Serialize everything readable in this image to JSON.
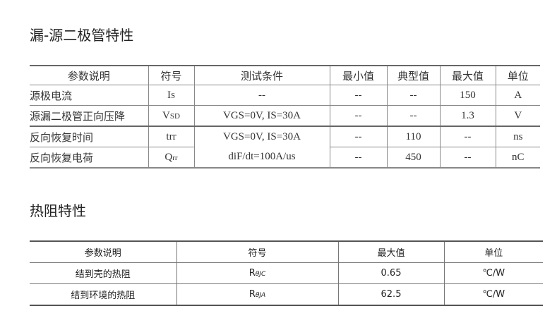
{
  "section1": {
    "title": "漏-源二极管特性",
    "headers": [
      "参数说明",
      "符号",
      "测试条件",
      "最小值",
      "典型值",
      "最大值",
      "单位"
    ],
    "rows": [
      {
        "param": "源极电流",
        "sym": "I",
        "sub": "S",
        "cond": "--",
        "min": "--",
        "typ": "--",
        "max": "150",
        "unit": "A"
      },
      {
        "param": "源漏二极管正向压降",
        "sym": "V",
        "sub": "SD",
        "cond": "VGS=0V, IS=30A",
        "min": "--",
        "typ": "--",
        "max": "1.3",
        "unit": "V"
      },
      {
        "param": "反向恢复时间",
        "sym": "trr",
        "sub": "",
        "cond": "VGS=0V, IS=30A",
        "min": "--",
        "typ": "110",
        "max": "--",
        "unit": "ns"
      },
      {
        "param": "反向恢复电荷",
        "sym": "Q",
        "sub": "rr",
        "cond": "diF/dt=100A/us",
        "min": "--",
        "typ": "450",
        "max": "--",
        "unit": "nC"
      }
    ]
  },
  "section2": {
    "title": "热阻特性",
    "headers": [
      "参数说明",
      "符号",
      "最大值",
      "单位"
    ],
    "rows": [
      {
        "param": "结到壳的热阻",
        "sym": "R",
        "sub": "θJC",
        "max": "0.65",
        "unit": "℃/W"
      },
      {
        "param": "结到环境的热阻",
        "sym": "R",
        "sub": "θJA",
        "max": "62.5",
        "unit": "℃/W"
      }
    ]
  }
}
